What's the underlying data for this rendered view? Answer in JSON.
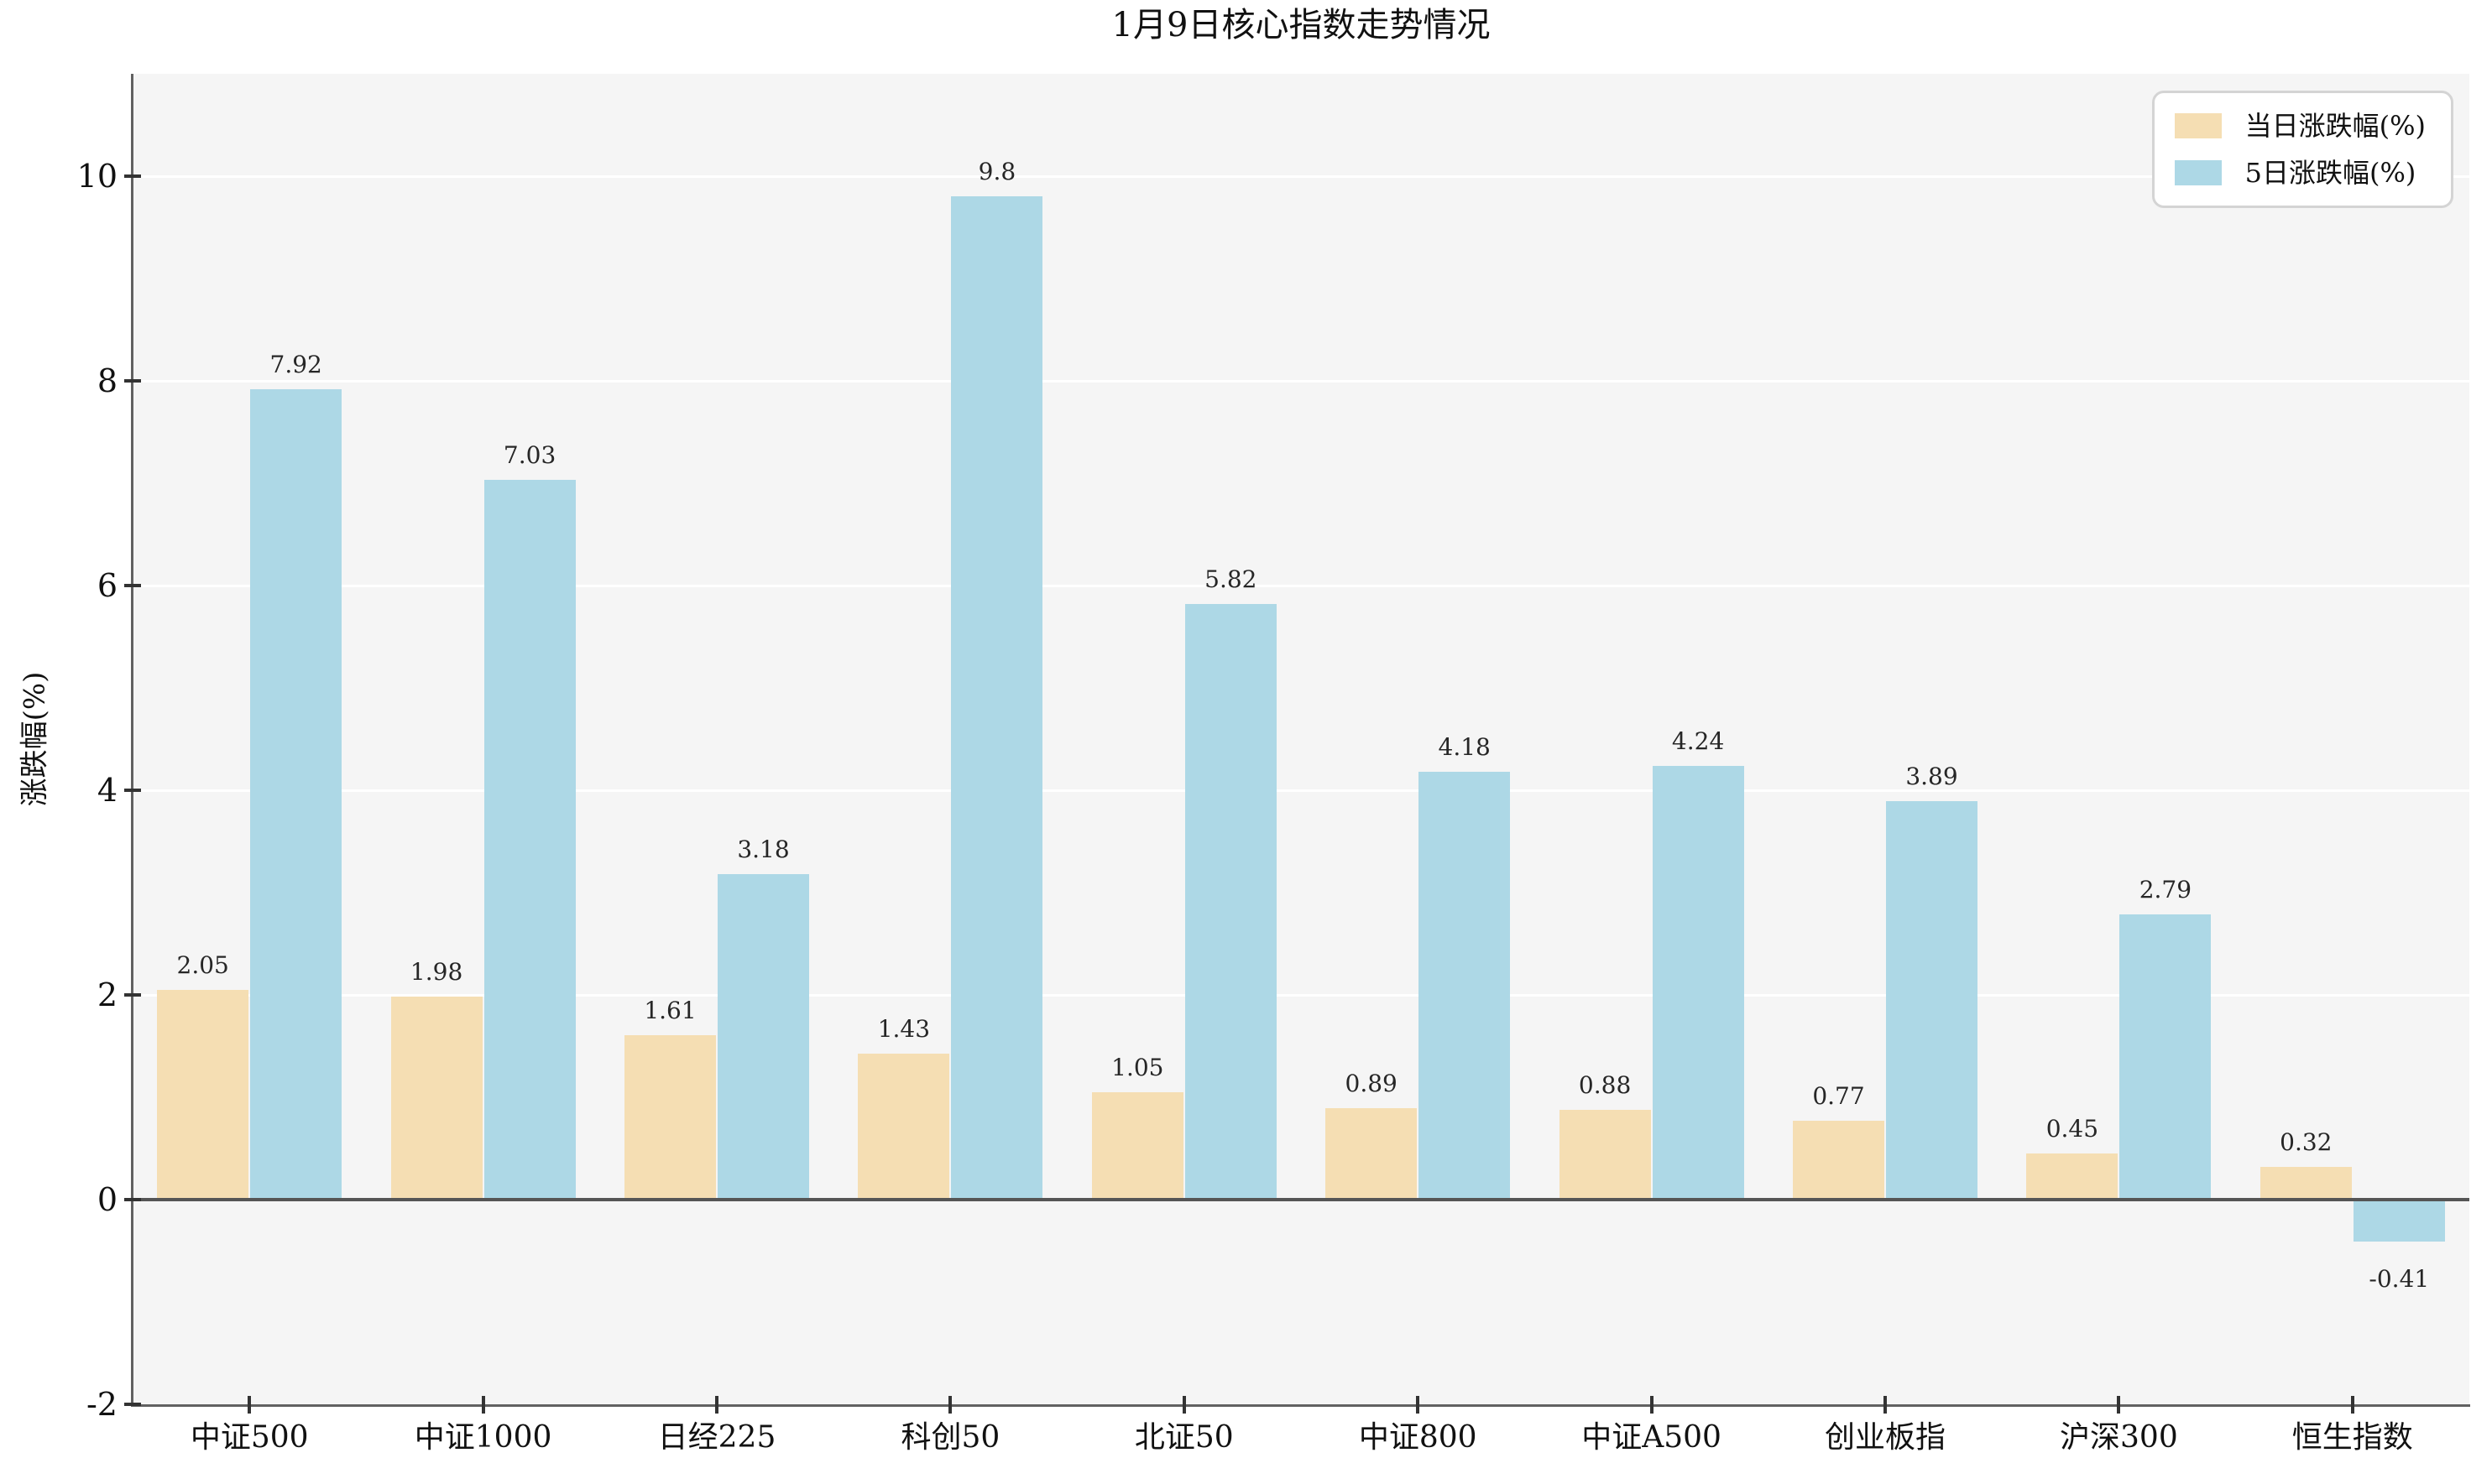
{
  "title": "1月9日核心指数走势情况",
  "y_axis_title": "涨跌幅(%)",
  "legend": {
    "items": [
      {
        "label": "当日涨跌幅(%)",
        "color": "#F5DEB3"
      },
      {
        "label": "5日涨跌幅(%)",
        "color": "#ADD8E6"
      }
    ]
  },
  "chart_data": {
    "type": "bar",
    "title": "1月9日核心指数走势情况",
    "xlabel": "",
    "ylabel": "涨跌幅(%)",
    "categories": [
      "中证500",
      "中证1000",
      "日经225",
      "科创50",
      "北证50",
      "中证800",
      "中证A500",
      "创业板指",
      "沪深300",
      "恒生指数"
    ],
    "series": [
      {
        "name": "当日涨跌幅(%)",
        "color": "#F5DEB3",
        "values": [
          2.05,
          1.98,
          1.61,
          1.43,
          1.05,
          0.89,
          0.88,
          0.77,
          0.45,
          0.32
        ]
      },
      {
        "name": "5日涨跌幅(%)",
        "color": "#ADD8E6",
        "values": [
          7.92,
          7.03,
          3.18,
          9.8,
          5.82,
          4.18,
          4.24,
          3.89,
          2.79,
          -0.41
        ]
      }
    ],
    "value_labels": [
      [
        "2.05",
        "1.98",
        "1.61",
        "1.43",
        "1.05",
        "0.89",
        "0.88",
        "0.77",
        "0.45",
        "0.32"
      ],
      [
        "7.92",
        "7.03",
        "3.18",
        "9.8",
        "5.82",
        "4.18",
        "4.24",
        "3.89",
        "2.79",
        "-0.41"
      ]
    ],
    "ylim": [
      -2,
      11
    ],
    "yticks": [
      -2,
      0,
      2,
      4,
      6,
      8,
      10
    ],
    "grid": true,
    "grid_color": "#ffffff",
    "plot_background": "#f5f5f5",
    "legend_position": "upper right"
  }
}
